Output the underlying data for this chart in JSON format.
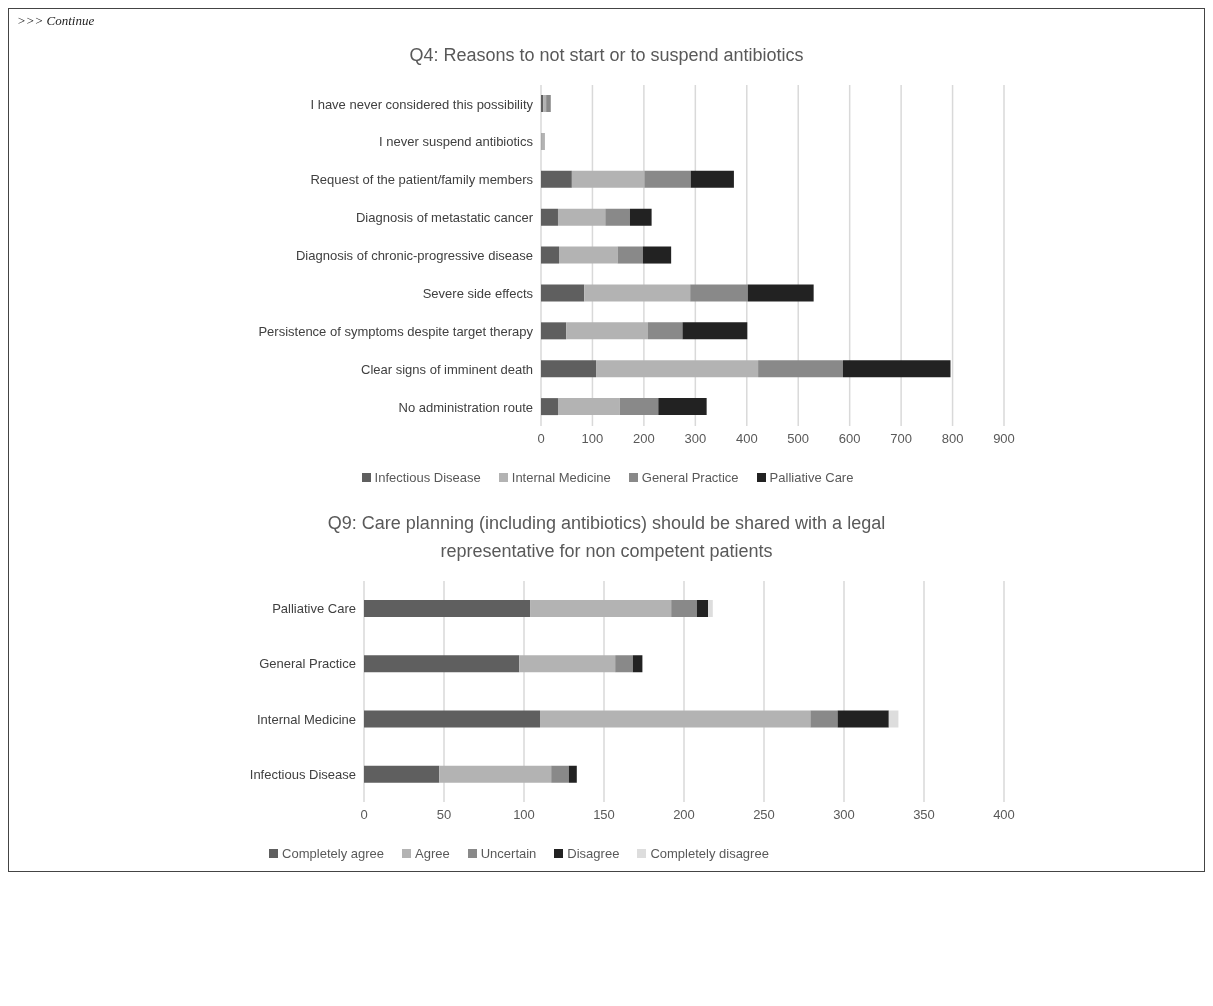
{
  "chart_data": [
    {
      "type": "bar",
      "orientation": "horizontal",
      "stacked": true,
      "title": "Q4: Reasons to not start or to suspend antibiotics",
      "annotations": [
        ">>> Continue"
      ],
      "categories": [
        "I have never considered this possibility",
        "I never suspend antibiotics",
        "Request of the patient/family members",
        "Diagnosis of metastatic cancer",
        "Diagnosis of chronic-progressive disease",
        "Severe side effects",
        "Persistence of symptoms despite target therapy",
        "Clear signs of imminent death",
        "No administration route"
      ],
      "series": [
        {
          "name": "Infectious Disease",
          "color": "#5f5f5f",
          "values": [
            4,
            1,
            60,
            33,
            35,
            84,
            49,
            107,
            33
          ]
        },
        {
          "name": "Internal Medicine",
          "color": "#b3b3b3",
          "values": [
            6,
            4,
            141,
            92,
            114,
            206,
            159,
            315,
            120
          ]
        },
        {
          "name": "General Practice",
          "color": "#898989",
          "values": [
            9,
            2,
            90,
            48,
            49,
            112,
            67,
            165,
            75
          ]
        },
        {
          "name": "Palliative Care",
          "color": "#222222",
          "values": [
            null,
            0,
            84,
            42,
            55,
            128,
            126,
            209,
            94
          ]
        }
      ],
      "xlim": [
        0,
        900
      ],
      "xticks": [
        0,
        100,
        200,
        300,
        400,
        500,
        600,
        700,
        800,
        900
      ],
      "grid": "x",
      "legend": "bottom"
    },
    {
      "type": "bar",
      "orientation": "horizontal",
      "stacked": true,
      "title": "Q9: Care planning (including antibiotics) should be shared with a legal representative for non competent patients",
      "categories": [
        "Palliative Care",
        "General Practice",
        "Internal Medicine",
        "Infectious Disease"
      ],
      "series": [
        {
          "name": "Completely agree",
          "color": "#5f5f5f",
          "values": [
            104,
            97,
            110,
            47
          ]
        },
        {
          "name": "Agree",
          "color": "#b3b3b3",
          "values": [
            88,
            60,
            169,
            70
          ]
        },
        {
          "name": "Uncertain",
          "color": "#898989",
          "values": [
            16,
            11,
            17,
            11
          ]
        },
        {
          "name": "Disagree",
          "color": "#222222",
          "values": [
            7,
            6,
            32,
            5
          ]
        },
        {
          "name": "Completely disagree",
          "color": "#dddddd",
          "values": [
            3,
            null,
            6,
            null
          ]
        }
      ],
      "xlim": [
        0,
        400
      ],
      "xticks": [
        0,
        50,
        100,
        150,
        200,
        250,
        300,
        350,
        400
      ],
      "grid": "x",
      "legend": "bottom"
    }
  ]
}
